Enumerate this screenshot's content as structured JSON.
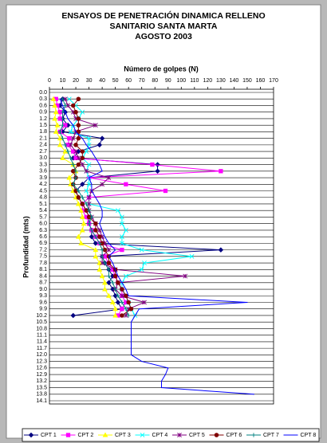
{
  "chart_data": {
    "type": "line",
    "title": [
      "ENSAYOS DE PENETRACIÓN DINAMICA RELLENO",
      "SANITARIO SANTA MARTA",
      "AGOSTO 2003"
    ],
    "x_label": "Número de golpes (N)",
    "y_label": "Profundidad (mts)",
    "categories": [
      "0.0",
      "0.3",
      "0.6",
      "0.9",
      "1.2",
      "1.5",
      "1.8",
      "2.1",
      "2.4",
      "2.7",
      "3.0",
      "3.3",
      "3.6",
      "3.9",
      "4.2",
      "4.5",
      "4.8",
      "5.1",
      "5.4",
      "5.7",
      "6.0",
      "6.3",
      "6.6",
      "6.9",
      "7.2",
      "7.5",
      "7.8",
      "8.1",
      "8.4",
      "8.7",
      "9.0",
      "9.3",
      "9.6",
      "9.9",
      "10.2",
      "10.5",
      "10.8",
      "11.1",
      "11.4",
      "11.7",
      "12.0",
      "12.3",
      "12.6",
      "12.9",
      "13.2",
      "13.5",
      "13.8",
      "14.1"
    ],
    "xlim": [
      0,
      170
    ],
    "xticks": [
      0,
      10,
      20,
      30,
      40,
      50,
      60,
      70,
      80,
      90,
      100,
      110,
      120,
      130,
      140,
      150,
      160,
      170
    ],
    "grid": true,
    "legend": "bottom",
    "series": [
      {
        "name": "CPT 1",
        "color": "#000080",
        "marker": "diamond",
        "values": [
          null,
          10,
          8,
          12,
          10,
          14,
          10,
          40,
          38,
          22,
          18,
          82,
          82,
          30,
          25,
          20,
          22,
          25,
          28,
          30,
          30,
          32,
          32,
          35,
          130,
          40,
          42,
          45,
          48,
          45,
          48,
          50,
          52,
          55,
          18,
          null,
          null,
          null,
          null,
          null,
          null,
          null,
          null,
          null,
          null,
          null,
          null,
          null
        ]
      },
      {
        "name": "CPT 2",
        "color": "#ff00ff",
        "marker": "square",
        "values": [
          null,
          5,
          6,
          8,
          8,
          12,
          8,
          15,
          14,
          18,
          20,
          78,
          130,
          30,
          58,
          88,
          30,
          25,
          25,
          28,
          30,
          32,
          35,
          38,
          55,
          42,
          45,
          48,
          50,
          52,
          55,
          55,
          58,
          55,
          52,
          null,
          null,
          null,
          null,
          null,
          null,
          null,
          null,
          null,
          null,
          null,
          null,
          null
        ]
      },
      {
        "name": "CPT 3",
        "color": "#ffff00",
        "marker": "triangle",
        "values": [
          null,
          3,
          4,
          5,
          4,
          6,
          5,
          8,
          8,
          12,
          10,
          18,
          20,
          15,
          16,
          18,
          20,
          22,
          24,
          25,
          26,
          25,
          22,
          24,
          35,
          35,
          38,
          38,
          40,
          42,
          42,
          45,
          48,
          50,
          50,
          null,
          null,
          null,
          null,
          null,
          null,
          null,
          null,
          null,
          null,
          null,
          null,
          null
        ]
      },
      {
        "name": "CPT 4",
        "color": "#00ffff",
        "marker": "x",
        "values": [
          null,
          15,
          20,
          25,
          22,
          18,
          16,
          30,
          30,
          28,
          25,
          30,
          28,
          30,
          30,
          28,
          30,
          30,
          52,
          55,
          55,
          58,
          55,
          55,
          70,
          108,
          72,
          70,
          58,
          55,
          55,
          58,
          60,
          62,
          65,
          null,
          null,
          null,
          null,
          null,
          null,
          null,
          null,
          null,
          null,
          null,
          null,
          null
        ]
      },
      {
        "name": "CPT 5",
        "color": "#800080",
        "marker": "star",
        "values": [
          null,
          12,
          14,
          18,
          20,
          35,
          20,
          18,
          16,
          20,
          22,
          25,
          28,
          45,
          40,
          32,
          30,
          30,
          30,
          32,
          35,
          38,
          40,
          42,
          45,
          40,
          40,
          50,
          103,
          52,
          50,
          55,
          72,
          60,
          58,
          null,
          null,
          null,
          null,
          null,
          null,
          null,
          null,
          null,
          null,
          null,
          null,
          null
        ]
      },
      {
        "name": "CPT 6",
        "color": "#800000",
        "marker": "circle",
        "values": [
          null,
          22,
          18,
          20,
          22,
          22,
          22,
          22,
          20,
          25,
          25,
          22,
          18,
          20,
          18,
          20,
          22,
          25,
          28,
          30,
          35,
          35,
          38,
          40,
          42,
          45,
          45,
          50,
          50,
          52,
          55,
          58,
          60,
          62,
          55,
          null,
          null,
          null,
          null,
          null,
          null,
          null,
          null,
          null,
          null,
          null,
          null,
          null
        ]
      },
      {
        "name": "CPT 7",
        "color": "#008080",
        "marker": "plus",
        "values": [
          null,
          10,
          12,
          10,
          10,
          10,
          8,
          10,
          12,
          14,
          16,
          18,
          20,
          20,
          18,
          22,
          25,
          28,
          30,
          32,
          30,
          32,
          35,
          38,
          40,
          40,
          42,
          45,
          45,
          48,
          50,
          52,
          55,
          58,
          60,
          null,
          null,
          null,
          null,
          null,
          null,
          null,
          null,
          null,
          null,
          null,
          null,
          null
        ]
      },
      {
        "name": "CPT 8",
        "color": "#0000ff",
        "marker": "none",
        "values": [
          null,
          8,
          10,
          12,
          14,
          18,
          20,
          25,
          28,
          32,
          35,
          38,
          40,
          30,
          32,
          32,
          35,
          38,
          40,
          40,
          38,
          40,
          42,
          45,
          50,
          45,
          48,
          50,
          52,
          55,
          58,
          60,
          150,
          68,
          65,
          62,
          62,
          62,
          62,
          62,
          62,
          70,
          90,
          88,
          85,
          85,
          155,
          null
        ]
      }
    ]
  }
}
